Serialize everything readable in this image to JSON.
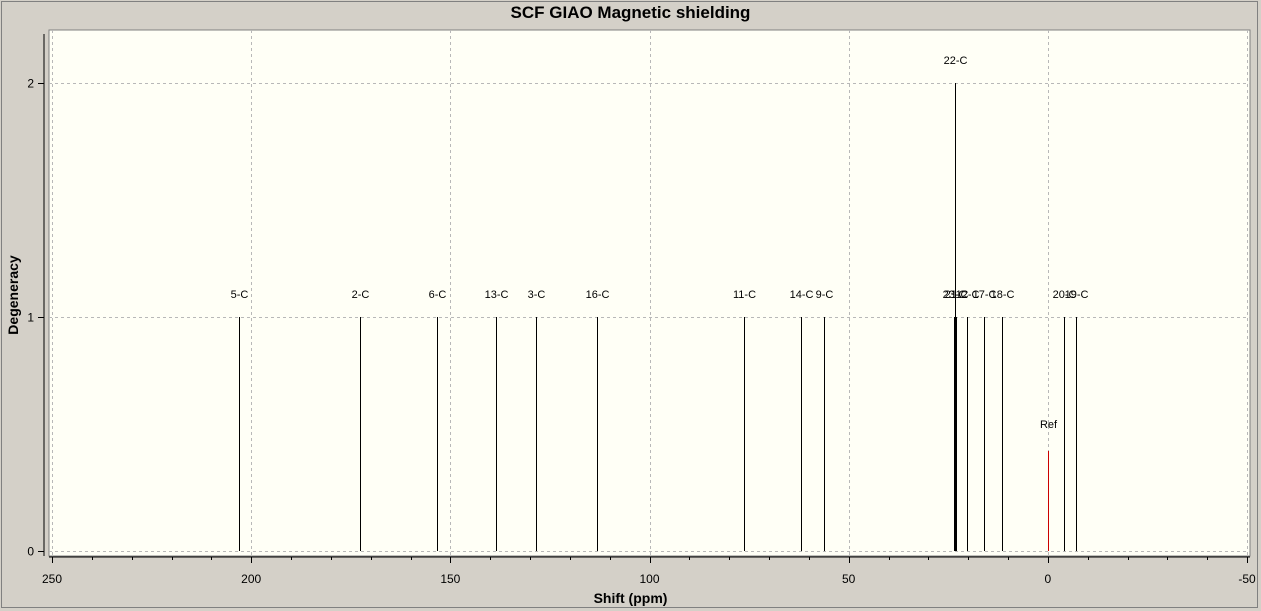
{
  "chart_data": {
    "type": "bar",
    "title": "SCF GIAO Magnetic shielding",
    "xlabel": "Shift (ppm)",
    "ylabel": "Degeneracy",
    "xlim": [
      250,
      -50
    ],
    "ylim": [
      0,
      2.2
    ],
    "x_ticks": [
      250,
      200,
      150,
      100,
      50,
      0,
      -50
    ],
    "y_ticks": [
      0,
      1,
      2
    ],
    "grid": true,
    "peak_color": "#000000",
    "ref_color": "#cc0000",
    "background": "#fffff6",
    "peaks": [
      {
        "label": "5-C",
        "x": 203.1,
        "y": 1
      },
      {
        "label": "2-C",
        "x": 172.7,
        "y": 1
      },
      {
        "label": "6-C",
        "x": 153.3,
        "y": 1
      },
      {
        "label": "13-C",
        "x": 138.5,
        "y": 1
      },
      {
        "label": "3-C",
        "x": 128.5,
        "y": 1
      },
      {
        "label": "16-C",
        "x": 113.3,
        "y": 1
      },
      {
        "label": "11-C",
        "x": 76.4,
        "y": 1
      },
      {
        "label": "14-C",
        "x": 61.9,
        "y": 1
      },
      {
        "label": "9-C",
        "x": 56.3,
        "y": 1
      },
      {
        "label": "22-C",
        "x": 23.2,
        "y": 2
      },
      {
        "label": "23-C",
        "x": 23.5,
        "y": 1
      },
      {
        "label": "21-C",
        "x": 23.0,
        "y": 1
      },
      {
        "label": "12-C",
        "x": 20.3,
        "y": 1
      },
      {
        "label": "17-C",
        "x": 15.9,
        "y": 1
      },
      {
        "label": "18-C",
        "x": 11.4,
        "y": 1
      },
      {
        "label": "20-C",
        "x": -4.1,
        "y": 1
      },
      {
        "label": "19-C",
        "x": -7.1,
        "y": 1
      }
    ],
    "ref": {
      "label": "Ref",
      "x": 0,
      "y": 0.5
    }
  }
}
